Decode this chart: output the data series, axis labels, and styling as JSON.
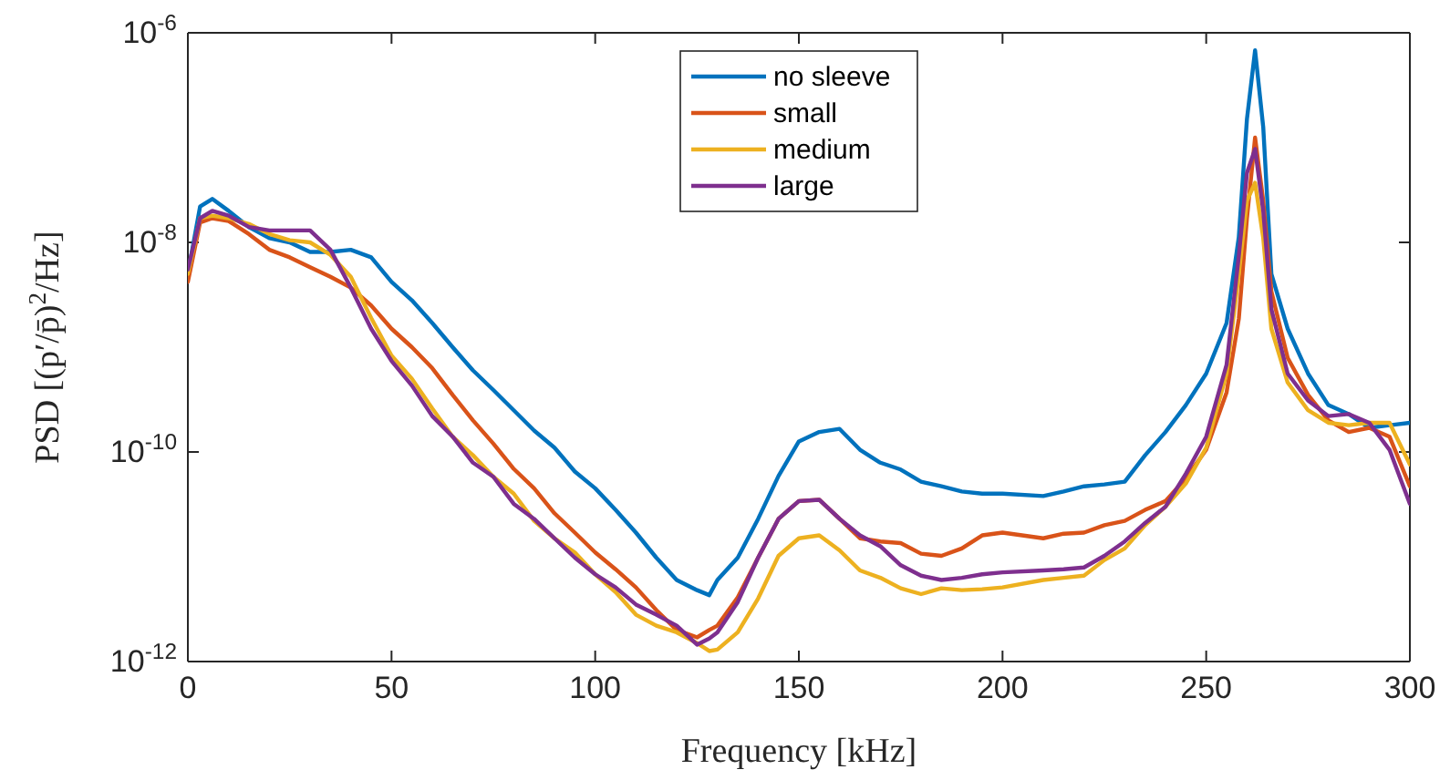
{
  "chart_data": {
    "type": "line",
    "xlabel": "Frequency [kHz]",
    "ylabel": "PSD [(p′/p̄)$^{2}$/Hz]",
    "log": "y",
    "grid": false,
    "legend": "top",
    "marker": "none",
    "line_style": "solid",
    "xlim": [
      0,
      300
    ],
    "xticks": [
      0,
      50,
      100,
      150,
      200,
      250,
      300
    ],
    "ylim": [
      1e-12,
      1e-06
    ],
    "yticks": [
      {
        "value": 1e-12,
        "label": "10$^{-12}$"
      },
      {
        "value": 1e-10,
        "label": "10$^{-10}$"
      },
      {
        "value": 1e-08,
        "label": "10$^{-8}$"
      },
      {
        "value": 1e-06,
        "label": "10$^{-6}$"
      }
    ],
    "x": [
      0,
      3,
      6,
      10,
      15,
      20,
      25,
      30,
      35,
      40,
      45,
      50,
      55,
      60,
      65,
      70,
      75,
      80,
      85,
      90,
      95,
      100,
      105,
      110,
      115,
      120,
      125,
      128,
      130,
      135,
      140,
      145,
      150,
      155,
      160,
      165,
      170,
      175,
      180,
      185,
      190,
      195,
      200,
      210,
      215,
      220,
      225,
      230,
      235,
      240,
      245,
      250,
      255,
      258,
      260,
      262,
      264,
      266,
      270,
      275,
      280,
      285,
      290,
      295,
      300
    ],
    "series": [
      {
        "name": "no sleeve",
        "color": "#0072bd",
        "values": [
          5e-09,
          2.2e-08,
          2.6e-08,
          2e-08,
          1.4e-08,
          1.1e-08,
          1e-08,
          8.1e-09,
          8.1e-09,
          8.5e-09,
          7.2e-09,
          4.2e-09,
          2.8e-09,
          1.7e-09,
          1e-09,
          6e-10,
          3.9e-10,
          2.5e-10,
          1.6e-10,
          1.1e-10,
          6.5e-11,
          4.5e-11,
          2.8e-11,
          1.7e-11,
          9.8e-12,
          6e-12,
          4.8e-12,
          4.3e-12,
          6e-12,
          9.8e-12,
          2.3e-11,
          5.9e-11,
          1.26e-10,
          1.55e-10,
          1.66e-10,
          1.05e-10,
          7.9e-11,
          6.8e-11,
          5.2e-11,
          4.7e-11,
          4.2e-11,
          4e-11,
          4e-11,
          3.8e-11,
          4.2e-11,
          4.7e-11,
          4.9e-11,
          5.2e-11,
          9.3e-11,
          1.55e-10,
          2.8e-10,
          5.6e-10,
          1.7e-09,
          1.12e-08,
          1.5e-07,
          6.8e-07,
          1.26e-07,
          5e-09,
          1.5e-09,
          5.6e-10,
          2.8e-10,
          2.3e-10,
          1.7e-10,
          1.8e-10,
          1.9e-10
        ]
      },
      {
        "name": "small",
        "color": "#d95319",
        "values": [
          4.2e-09,
          1.55e-08,
          1.7e-08,
          1.6e-08,
          1.2e-08,
          8.5e-09,
          7.2e-09,
          5.8e-09,
          4.7e-09,
          3.7e-09,
          2.5e-09,
          1.5e-09,
          1e-09,
          6.3e-10,
          3.5e-10,
          2e-10,
          1.2e-10,
          6.9e-11,
          4.5e-11,
          2.6e-11,
          1.7e-11,
          1.1e-11,
          7.6e-12,
          5.1e-12,
          3.1e-12,
          2e-12,
          1.7e-12,
          2e-12,
          2.2e-12,
          4.1e-12,
          9.8e-12,
          2.3e-11,
          3.4e-11,
          3.5e-11,
          2.3e-11,
          1.5e-11,
          1.4e-11,
          1.35e-11,
          1.07e-11,
          1.02e-11,
          1.2e-11,
          1.6e-11,
          1.7e-11,
          1.5e-11,
          1.66e-11,
          1.7e-11,
          2e-11,
          2.2e-11,
          2.8e-11,
          3.4e-11,
          5.6e-11,
          1.05e-10,
          3.7e-10,
          1.86e-09,
          1.7e-08,
          1e-07,
          2.5e-08,
          3.4e-09,
          7.9e-10,
          3.5e-10,
          2e-10,
          1.55e-10,
          1.7e-10,
          1.4e-10,
          4.7e-11
        ]
      },
      {
        "name": "medium",
        "color": "#edb120",
        "values": [
          5e-09,
          1.7e-08,
          1.8e-08,
          1.7e-08,
          1.5e-08,
          1.2e-08,
          1.05e-08,
          1e-08,
          7.6e-09,
          4.7e-09,
          1.9e-09,
          8.3e-10,
          5e-10,
          2.6e-10,
          1.4e-10,
          9.3e-11,
          5.8e-11,
          4e-11,
          2.2e-11,
          1.5e-11,
          1.1e-11,
          6.8e-12,
          4.6e-12,
          2.8e-12,
          2.2e-12,
          1.9e-12,
          1.5e-12,
          1.26e-12,
          1.3e-12,
          1.9e-12,
          4e-12,
          1.02e-11,
          1.5e-11,
          1.6e-11,
          1.15e-11,
          7.4e-12,
          6.3e-12,
          5e-12,
          4.4e-12,
          5e-12,
          4.8e-12,
          4.9e-12,
          5.1e-12,
          6e-12,
          6.3e-12,
          6.6e-12,
          9.3e-12,
          1.2e-11,
          2e-11,
          3e-11,
          5e-11,
          1.1e-10,
          5.6e-10,
          5e-09,
          2.5e-08,
          3.7e-08,
          1.1e-08,
          1.5e-09,
          4.6e-10,
          2.5e-10,
          1.9e-10,
          1.8e-10,
          1.9e-10,
          1.9e-10,
          7.6e-11
        ]
      },
      {
        "name": "large",
        "color": "#7e2f8e",
        "values": [
          5.5e-09,
          1.7e-08,
          2e-08,
          1.8e-08,
          1.4e-08,
          1.3e-08,
          1.3e-08,
          1.3e-08,
          8.5e-09,
          3.7e-09,
          1.5e-09,
          7.4e-10,
          4.3e-10,
          2.2e-10,
          1.4e-10,
          7.9e-11,
          5.8e-11,
          3.2e-11,
          2.3e-11,
          1.5e-11,
          9.8e-12,
          6.8e-12,
          5.1e-12,
          3.5e-12,
          2.8e-12,
          2.2e-12,
          1.45e-12,
          1.66e-12,
          1.9e-12,
          3.7e-12,
          9.8e-12,
          2.3e-11,
          3.4e-11,
          3.5e-11,
          2.3e-11,
          1.6e-11,
          1.26e-11,
          8.3e-12,
          6.6e-12,
          6e-12,
          6.3e-12,
          6.8e-12,
          7.1e-12,
          7.4e-12,
          7.6e-12,
          7.9e-12,
          1.02e-11,
          1.4e-11,
          2.1e-11,
          3e-11,
          6.2e-11,
          1.4e-10,
          6.8e-10,
          7.4e-09,
          4.6e-08,
          7.8e-08,
          2e-08,
          2.3e-09,
          5.6e-10,
          3.1e-10,
          2.2e-10,
          2.3e-10,
          1.9e-10,
          1.05e-10,
          3.2e-11
        ]
      }
    ]
  }
}
